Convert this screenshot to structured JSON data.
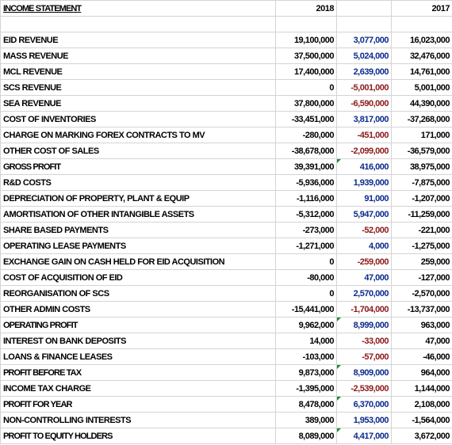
{
  "header": {
    "title": "INCOME STATEMENT",
    "col_2018": "2018",
    "col_2017": "2017"
  },
  "rows": [
    {
      "label": "EID REVENUE",
      "y2018": "19,100,000",
      "diff": "3,077,000",
      "y2017": "16,023,000"
    },
    {
      "label": "MASS REVENUE",
      "y2018": "37,500,000",
      "diff": "5,024,000",
      "y2017": "32,476,000"
    },
    {
      "label": "MCL REVENUE",
      "y2018": "17,400,000",
      "diff": "2,639,000",
      "y2017": "14,761,000"
    },
    {
      "label": "SCS REVENUE",
      "y2018": "0",
      "diff": "-5,001,000",
      "y2017": "5,001,000"
    },
    {
      "label": "SEA REVENUE",
      "y2018": "37,800,000",
      "diff": "-6,590,000",
      "y2017": "44,390,000"
    },
    {
      "label": "COST OF INVENTORIES",
      "y2018": "-33,451,000",
      "diff": "3,817,000",
      "y2017": "-37,268,000"
    },
    {
      "label": "CHARGE ON MARKING FOREX CONTRACTS TO MV",
      "y2018": "-280,000",
      "diff": "-451,000",
      "y2017": "171,000"
    },
    {
      "label": "OTHER COST OF SALES",
      "y2018": "-38,678,000",
      "diff": "-2,099,000",
      "y2017": "-36,579,000"
    },
    {
      "label": "GROSS PROFIT",
      "y2018": "39,391,000",
      "diff": "416,000",
      "y2017": "38,975,000",
      "bold": true
    },
    {
      "label": "R&D COSTS",
      "y2018": "-5,936,000",
      "diff": "1,939,000",
      "y2017": "-7,875,000"
    },
    {
      "label": "DEPRECIATION OF PROPERTY, PLANT & EQUIP",
      "y2018": "-1,116,000",
      "diff": "91,000",
      "y2017": "-1,207,000"
    },
    {
      "label": "AMORTISATION OF OTHER INTANGIBLE ASSETS",
      "y2018": "-5,312,000",
      "diff": "5,947,000",
      "y2017": "-11,259,000"
    },
    {
      "label": "SHARE BASED PAYMENTS",
      "y2018": "-273,000",
      "diff": "-52,000",
      "y2017": "-221,000"
    },
    {
      "label": "OPERATING LEASE PAYMENTS",
      "y2018": "-1,271,000",
      "diff": "4,000",
      "y2017": "-1,275,000"
    },
    {
      "label": "EXCHANGE GAIN ON CASH HELD FOR EID ACQUISITION",
      "y2018": "0",
      "diff": "-259,000",
      "y2017": "259,000"
    },
    {
      "label": "COST OF ACQUISITION OF EID",
      "y2018": "-80,000",
      "diff": "47,000",
      "y2017": "-127,000"
    },
    {
      "label": "REORGANISATION OF SCS",
      "y2018": "0",
      "diff": "2,570,000",
      "y2017": "-2,570,000"
    },
    {
      "label": "OTHER ADMIN COSTS",
      "y2018": "-15,441,000",
      "diff": "-1,704,000",
      "y2017": "-13,737,000"
    },
    {
      "label": "OPERATING PROFIT",
      "y2018": "9,962,000",
      "diff": "8,999,000",
      "y2017": "963,000",
      "bold": true
    },
    {
      "label": "INTEREST ON BANK DEPOSITS",
      "y2018": "14,000",
      "diff": "-33,000",
      "y2017": "47,000"
    },
    {
      "label": "LOANS & FINANCE LEASES",
      "y2018": "-103,000",
      "diff": "-57,000",
      "y2017": "-46,000"
    },
    {
      "label": "PROFIT BEFORE TAX",
      "y2018": "9,873,000",
      "diff": "8,909,000",
      "y2017": "964,000",
      "bold": true
    },
    {
      "label": "INCOME TAX CHARGE",
      "y2018": "-1,395,000",
      "diff": "-2,539,000",
      "y2017": "1,144,000"
    },
    {
      "label": "PROFIT FOR YEAR",
      "y2018": "8,478,000",
      "diff": "6,370,000",
      "y2017": "2,108,000",
      "bold": true
    },
    {
      "label": "NON-CONTROLLING INTERESTS",
      "y2018": "389,000",
      "diff": "1,953,000",
      "y2017": "-1,564,000"
    },
    {
      "label": "PROFIT TO EQUITY HOLDERS",
      "y2018": "8,089,000",
      "diff": "4,417,000",
      "y2017": "3,672,000",
      "bold": true
    }
  ]
}
